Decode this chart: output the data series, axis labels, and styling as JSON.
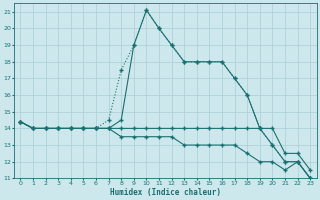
{
  "xlabel": "Humidex (Indice chaleur)",
  "background_color": "#cce8ec",
  "grid_color": "#aacdd4",
  "line_color": "#1a7070",
  "xlim": [
    -0.5,
    23.5
  ],
  "ylim": [
    11,
    21.5
  ],
  "xticks": [
    0,
    1,
    2,
    3,
    4,
    5,
    6,
    7,
    8,
    9,
    10,
    11,
    12,
    13,
    14,
    15,
    16,
    17,
    18,
    19,
    20,
    21,
    22,
    23
  ],
  "yticks": [
    11,
    12,
    13,
    14,
    15,
    16,
    17,
    18,
    19,
    20,
    21
  ],
  "series1_x": [
    0,
    1,
    2,
    3,
    4,
    5,
    6,
    7,
    8,
    9,
    10,
    11,
    12,
    13,
    14,
    15,
    16,
    17,
    18,
    19,
    20,
    21,
    22,
    23
  ],
  "series1_y": [
    14.4,
    14.0,
    14.0,
    14.0,
    14.0,
    14.0,
    14.0,
    14.5,
    17.5,
    19.0,
    21.1,
    20.0,
    19.0,
    18.0,
    18.0,
    18.0,
    18.0,
    17.0,
    16.0,
    14.0,
    13.0,
    12.0,
    12.0,
    11.0
  ],
  "series1_dotted": true,
  "series2_x": [
    0,
    1,
    2,
    3,
    4,
    5,
    6,
    7,
    8,
    9,
    10,
    11,
    12,
    13,
    14,
    15,
    16,
    17,
    18,
    19,
    20,
    21,
    22,
    23
  ],
  "series2_y": [
    14.4,
    14.0,
    14.0,
    14.0,
    14.0,
    14.0,
    14.0,
    14.0,
    14.5,
    19.0,
    21.1,
    20.0,
    19.0,
    18.0,
    18.0,
    18.0,
    18.0,
    17.0,
    16.0,
    14.0,
    13.0,
    12.0,
    12.0,
    11.0
  ],
  "series2_dotted": false,
  "series3_x": [
    0,
    1,
    2,
    3,
    4,
    5,
    6,
    7,
    8,
    9,
    10,
    11,
    12,
    13,
    14,
    15,
    16,
    17,
    18,
    19,
    20,
    21,
    22,
    23
  ],
  "series3_y": [
    14.4,
    14.0,
    14.0,
    14.0,
    14.0,
    14.0,
    14.0,
    14.0,
    14.0,
    14.0,
    14.0,
    14.0,
    14.0,
    14.0,
    14.0,
    14.0,
    14.0,
    14.0,
    14.0,
    14.0,
    14.0,
    12.5,
    12.5,
    11.5
  ],
  "series4_x": [
    0,
    1,
    2,
    3,
    4,
    5,
    6,
    7,
    8,
    9,
    10,
    11,
    12,
    13,
    14,
    15,
    16,
    17,
    18,
    19,
    20,
    21,
    22,
    23
  ],
  "series4_y": [
    14.4,
    14.0,
    14.0,
    14.0,
    14.0,
    14.0,
    14.0,
    14.0,
    13.5,
    13.5,
    13.5,
    13.5,
    13.5,
    13.0,
    13.0,
    13.0,
    13.0,
    13.0,
    12.5,
    12.0,
    12.0,
    11.5,
    12.0,
    11.0
  ]
}
